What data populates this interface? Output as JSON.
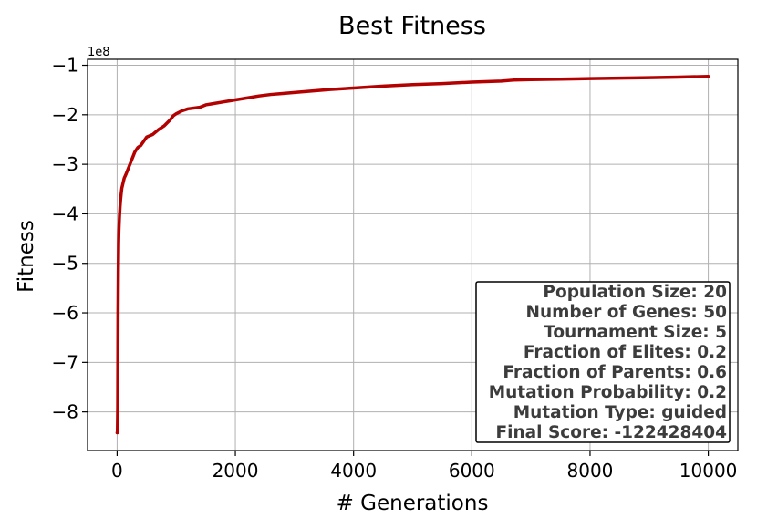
{
  "chart_data": {
    "type": "line",
    "title": "Best Fitness",
    "xlabel": "# Generations",
    "ylabel": "Fitness",
    "y_offset_label": "1e8",
    "xlim": [
      -500,
      10500
    ],
    "ylim": [
      -8.78,
      -0.88
    ],
    "x_ticks": [
      0,
      2000,
      4000,
      6000,
      8000,
      10000
    ],
    "x_tick_labels": [
      "0",
      "2000",
      "4000",
      "6000",
      "8000",
      "10000"
    ],
    "y_ticks": [
      -8,
      -7,
      -6,
      -5,
      -4,
      -3,
      -2,
      -1
    ],
    "y_tick_labels": [
      "−8",
      "−7",
      "−6",
      "−5",
      "−4",
      "−3",
      "−2",
      "−1"
    ],
    "grid": true,
    "series": [
      {
        "color": "#b30000",
        "x": [
          0,
          5,
          10,
          15,
          20,
          25,
          30,
          40,
          50,
          60,
          70,
          80,
          100,
          120,
          150,
          200,
          250,
          300,
          350,
          400,
          500,
          600,
          700,
          800,
          900,
          950,
          1000,
          1100,
          1200,
          1400,
          1500,
          1600,
          1800,
          2000,
          2200,
          2400,
          2600,
          2800,
          3000,
          3300,
          3600,
          4000,
          4500,
          5000,
          5500,
          6000,
          6500,
          6700,
          7000,
          7500,
          8000,
          8500,
          9000,
          9500,
          10000
        ],
        "y": [
          -8.42,
          -8.42,
          -7.9,
          -6.0,
          -5.1,
          -4.6,
          -4.35,
          -4.05,
          -3.85,
          -3.7,
          -3.58,
          -3.48,
          -3.38,
          -3.28,
          -3.2,
          -3.05,
          -2.9,
          -2.75,
          -2.66,
          -2.62,
          -2.45,
          -2.4,
          -2.3,
          -2.22,
          -2.1,
          -2.02,
          -1.98,
          -1.92,
          -1.88,
          -1.85,
          -1.8,
          -1.78,
          -1.74,
          -1.7,
          -1.66,
          -1.62,
          -1.59,
          -1.57,
          -1.55,
          -1.52,
          -1.49,
          -1.46,
          -1.42,
          -1.39,
          -1.37,
          -1.34,
          -1.32,
          -1.3,
          -1.29,
          -1.28,
          -1.27,
          -1.26,
          -1.25,
          -1.24,
          -1.2243
        ]
      }
    ],
    "annotation_box_location": "lower-right",
    "annotation_lines": [
      "Population Size: 20",
      "Number of Genes: 50",
      "Tournament Size: 5",
      "Fraction of Elites: 0.2",
      "Fraction of Parents: 0.6",
      "Mutation Probability: 0.2",
      "Mutation Type: guided",
      "Final Score: -122428404"
    ]
  }
}
